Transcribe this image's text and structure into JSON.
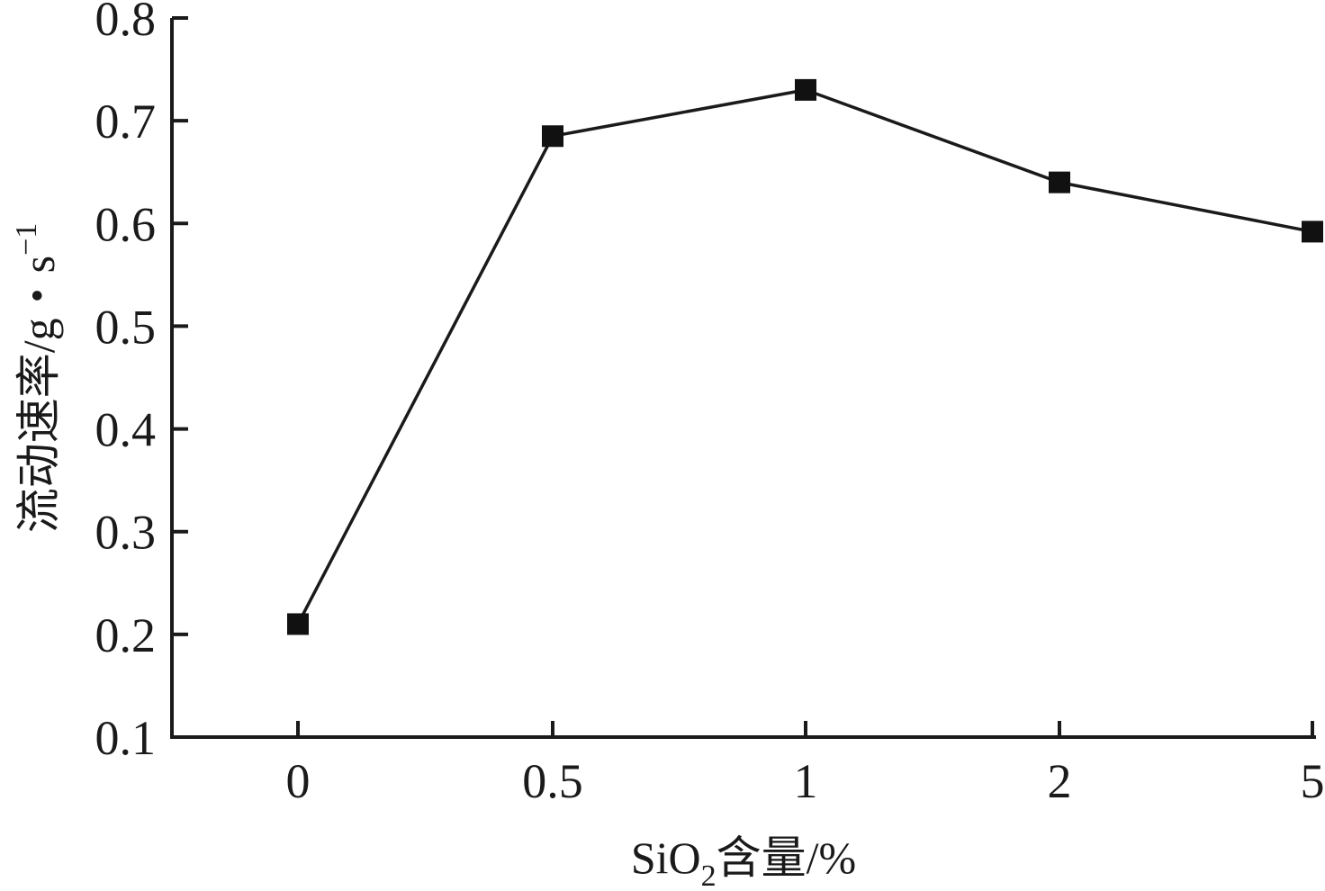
{
  "chart_data": {
    "type": "line",
    "categories": [
      "0",
      "0.5",
      "1",
      "2",
      "5"
    ],
    "series": [
      {
        "values": [
          0.21,
          0.685,
          0.73,
          0.64,
          0.592
        ]
      }
    ],
    "ylim": [
      0.1,
      0.8
    ],
    "yticks": [
      "0.1",
      "0.2",
      "0.3",
      "0.4",
      "0.5",
      "0.6",
      "0.7",
      "0.8"
    ],
    "xlabel": {
      "pre": "SiO",
      "sub": "2",
      "post": "含量/%"
    },
    "ylabel": {
      "main": "流动速率/g・s",
      "sup": "−1"
    },
    "grid": false,
    "marker": "square",
    "color": "#111111"
  }
}
